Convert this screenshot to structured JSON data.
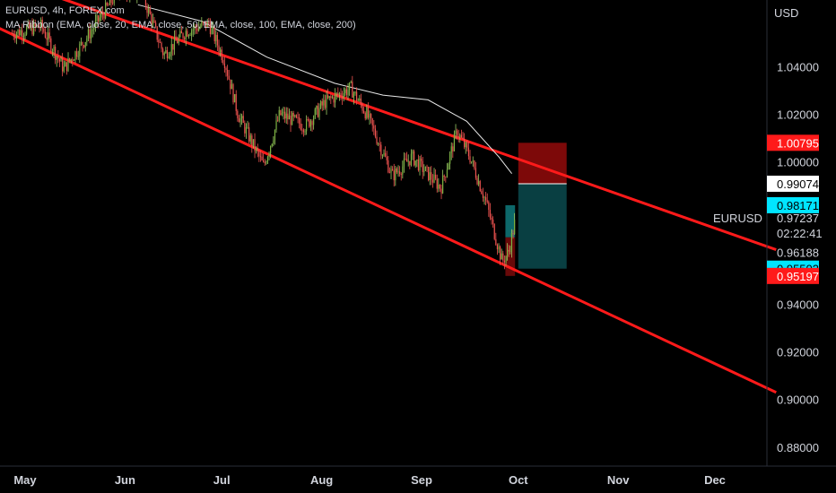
{
  "header": {
    "symbol_line": "EURUSD, 4h, FOREX.com",
    "indicator_line": "MA Ribbon (EMA, close, 20, EMA, close, 50, EMA, close, 100, EMA, close, 200)"
  },
  "axis": {
    "currency_label": "USD",
    "symbol_label": "EURUSD"
  },
  "chart_data": {
    "type": "candlestick",
    "ylim": [
      0.872,
      1.068
    ],
    "y_ticks": [
      "1.04000",
      "1.02000",
      "1.00000",
      "0.96188",
      "0.94000",
      "0.92000",
      "0.90000",
      "0.88000"
    ],
    "y_tick_values": [
      1.04,
      1.02,
      1.0,
      0.96188,
      0.94,
      0.92,
      0.9,
      0.88
    ],
    "x_ticks": [
      "May",
      "Jun",
      "Jul",
      "Aug",
      "Sep",
      "Oct",
      "Nov",
      "Dec"
    ],
    "x_tick_dates": [
      "2022-05-01",
      "2022-06-01",
      "2022-07-01",
      "2022-08-01",
      "2022-09-01",
      "2022-10-01",
      "2022-11-01",
      "2022-12-01"
    ],
    "price_badges": [
      {
        "value": "1.00795",
        "bg": "#ff1a1a",
        "fg": "#ffffff"
      },
      {
        "value": "0.99074",
        "bg": "#ffffff",
        "fg": "#000000"
      },
      {
        "value": "0.98171",
        "bg": "#00e5ff",
        "fg": "#000000"
      },
      {
        "value": "0.95503",
        "bg": "#00e5ff",
        "fg": "#000000"
      },
      {
        "value": "0.95197",
        "bg": "#ff1a1a",
        "fg": "#ffffff"
      }
    ],
    "current_price": "0.97237",
    "countdown": "02:22:41",
    "channel": {
      "color": "#ff1a1a",
      "upper_line": [
        {
          "date": "2022-05-01",
          "price": 1.074
        },
        {
          "date": "2022-12-20",
          "price": 0.963
        }
      ],
      "lower_line": [
        {
          "date": "2022-04-20",
          "price": 1.058
        },
        {
          "date": "2022-12-20",
          "price": 0.903
        }
      ]
    },
    "ema_line": [
      {
        "date": "2022-06-05",
        "price": 1.066
      },
      {
        "date": "2022-06-25",
        "price": 1.059
      },
      {
        "date": "2022-07-15",
        "price": 1.044
      },
      {
        "date": "2022-08-05",
        "price": 1.033
      },
      {
        "date": "2022-08-20",
        "price": 1.028
      },
      {
        "date": "2022-09-03",
        "price": 1.026
      },
      {
        "date": "2022-09-15",
        "price": 1.017
      },
      {
        "date": "2022-09-25",
        "price": 1.002
      },
      {
        "date": "2022-09-29",
        "price": 0.995
      }
    ],
    "candles_path": [
      {
        "date": "2022-04-27",
        "price": 1.054
      },
      {
        "date": "2022-05-06",
        "price": 1.057
      },
      {
        "date": "2022-05-13",
        "price": 1.039
      },
      {
        "date": "2022-05-20",
        "price": 1.052
      },
      {
        "date": "2022-05-30",
        "price": 1.072
      },
      {
        "date": "2022-06-06",
        "price": 1.072
      },
      {
        "date": "2022-06-13",
        "price": 1.045
      },
      {
        "date": "2022-06-20",
        "price": 1.055
      },
      {
        "date": "2022-06-27",
        "price": 1.058
      },
      {
        "date": "2022-07-02",
        "price": 1.042
      },
      {
        "date": "2022-07-06",
        "price": 1.02
      },
      {
        "date": "2022-07-14",
        "price": 0.998
      },
      {
        "date": "2022-07-19",
        "price": 1.02
      },
      {
        "date": "2022-07-27",
        "price": 1.015
      },
      {
        "date": "2022-08-02",
        "price": 1.025
      },
      {
        "date": "2022-08-10",
        "price": 1.031
      },
      {
        "date": "2022-08-15",
        "price": 1.02
      },
      {
        "date": "2022-08-23",
        "price": 0.994
      },
      {
        "date": "2022-08-29",
        "price": 1.002
      },
      {
        "date": "2022-09-07",
        "price": 0.989
      },
      {
        "date": "2022-09-12",
        "price": 1.013
      },
      {
        "date": "2022-09-16",
        "price": 1.002
      },
      {
        "date": "2022-09-21",
        "price": 0.983
      },
      {
        "date": "2022-09-26",
        "price": 0.958
      },
      {
        "date": "2022-09-28",
        "price": 0.962
      },
      {
        "date": "2022-09-30",
        "price": 0.975
      }
    ],
    "position": {
      "short_entry_price": 0.99074,
      "stop_price": 1.00795,
      "target_price": 0.95503,
      "start_date": "2022-10-01",
      "end_date": "2022-10-16",
      "profit_color": "#0b4a4d",
      "loss_color": "#8b0a0a"
    },
    "long_position": {
      "entry_price": 0.9682,
      "target_price": 0.98171,
      "stop_price": 0.95197,
      "start_date": "2022-09-27",
      "end_date": "2022-09-30"
    }
  }
}
